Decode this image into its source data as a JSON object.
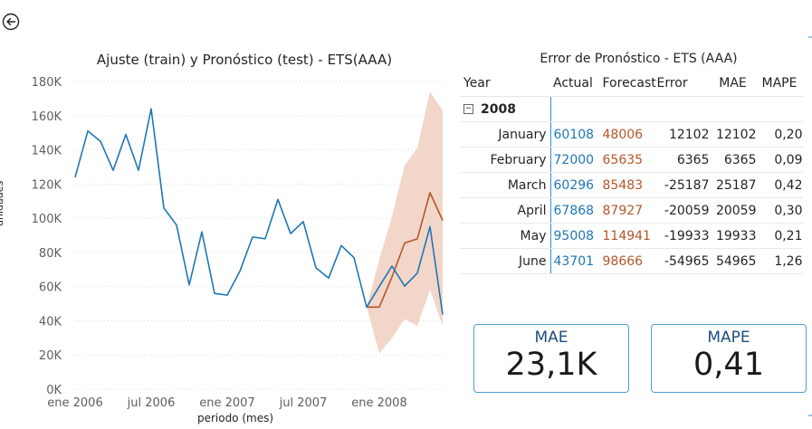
{
  "nav": {
    "back_icon": "arrow-left-circle-icon"
  },
  "colors": {
    "actual": "#1f77b4",
    "forecast": "#b5562a",
    "band": "#f0cfc0",
    "card_border": "#4f9ed6",
    "card_label": "#1f4e79"
  },
  "chart_data": {
    "type": "line",
    "title": "Ajuste (train) y Pronóstico (test) - ETS(AAA)",
    "xlabel": "periodo (mes)",
    "ylabel": "unidades",
    "ylim": [
      0,
      180000
    ],
    "y_ticks": [
      0,
      20000,
      40000,
      60000,
      80000,
      100000,
      120000,
      140000,
      160000,
      180000
    ],
    "y_tick_labels": [
      "0K",
      "20K",
      "40K",
      "60K",
      "80K",
      "100K",
      "120K",
      "140K",
      "160K",
      "180K"
    ],
    "x_tick_labels": [
      "ene 2006",
      "jul 2006",
      "ene 2007",
      "jul 2007",
      "ene 2008"
    ],
    "x": [
      "2006-01",
      "2006-02",
      "2006-03",
      "2006-04",
      "2006-05",
      "2006-06",
      "2006-07",
      "2006-08",
      "2006-09",
      "2006-10",
      "2006-11",
      "2006-12",
      "2007-01",
      "2007-02",
      "2007-03",
      "2007-04",
      "2007-05",
      "2007-06",
      "2007-07",
      "2007-08",
      "2007-09",
      "2007-10",
      "2007-11",
      "2007-12",
      "2008-01",
      "2008-02",
      "2008-03",
      "2008-04",
      "2008-05",
      "2008-06"
    ],
    "grid": true,
    "series": [
      {
        "key": "actual",
        "values": [
          124000,
          151000,
          145000,
          128000,
          149000,
          128000,
          164000,
          106000,
          96000,
          61000,
          92000,
          56000,
          55000,
          69000,
          89000,
          88000,
          111000,
          91000,
          98000,
          71000,
          65000,
          84000,
          77000,
          48000,
          60108,
          72000,
          60296,
          67868,
          95008,
          43701
        ]
      },
      {
        "key": "forecast",
        "values": [
          null,
          null,
          null,
          null,
          null,
          null,
          null,
          null,
          null,
          null,
          null,
          null,
          null,
          null,
          null,
          null,
          null,
          null,
          null,
          null,
          null,
          null,
          null,
          48000,
          48006,
          65635,
          85483,
          87927,
          114941,
          98666
        ]
      },
      {
        "key": "interval",
        "lower": [
          null,
          null,
          null,
          null,
          null,
          null,
          null,
          null,
          null,
          null,
          null,
          null,
          null,
          null,
          null,
          null,
          null,
          null,
          null,
          null,
          null,
          null,
          null,
          48000,
          21000,
          30000,
          41000,
          37000,
          58000,
          37000
        ],
        "upper": [
          null,
          null,
          null,
          null,
          null,
          null,
          null,
          null,
          null,
          null,
          null,
          null,
          null,
          null,
          null,
          null,
          null,
          null,
          null,
          null,
          null,
          null,
          null,
          48000,
          76000,
          101000,
          131000,
          141000,
          174000,
          163000
        ]
      }
    ]
  },
  "table": {
    "title": "Error de Pronóstico - ETS (AAA)",
    "headers": {
      "year": "Year",
      "actual": "Actual",
      "forecast": "Forecast",
      "error": "Error",
      "mae": "MAE",
      "mape": "MAPE"
    },
    "year": "2008",
    "expander": "−",
    "rows": [
      {
        "month": "January",
        "actual": "60108",
        "forecast": "48006",
        "error": "12102",
        "mae": "12102",
        "mape": "0,20"
      },
      {
        "month": "February",
        "actual": "72000",
        "forecast": "65635",
        "error": "6365",
        "mae": "6365",
        "mape": "0,09"
      },
      {
        "month": "March",
        "actual": "60296",
        "forecast": "85483",
        "error": "-25187",
        "mae": "25187",
        "mape": "0,42"
      },
      {
        "month": "April",
        "actual": "67868",
        "forecast": "87927",
        "error": "-20059",
        "mae": "20059",
        "mape": "0,30"
      },
      {
        "month": "May",
        "actual": "95008",
        "forecast": "114941",
        "error": "-19933",
        "mae": "19933",
        "mape": "0,21"
      },
      {
        "month": "June",
        "actual": "43701",
        "forecast": "98666",
        "error": "-54965",
        "mae": "54965",
        "mape": "1,26"
      }
    ]
  },
  "cards": [
    {
      "label": "MAE",
      "value": "23,1K"
    },
    {
      "label": "MAPE",
      "value": "0,41"
    }
  ]
}
